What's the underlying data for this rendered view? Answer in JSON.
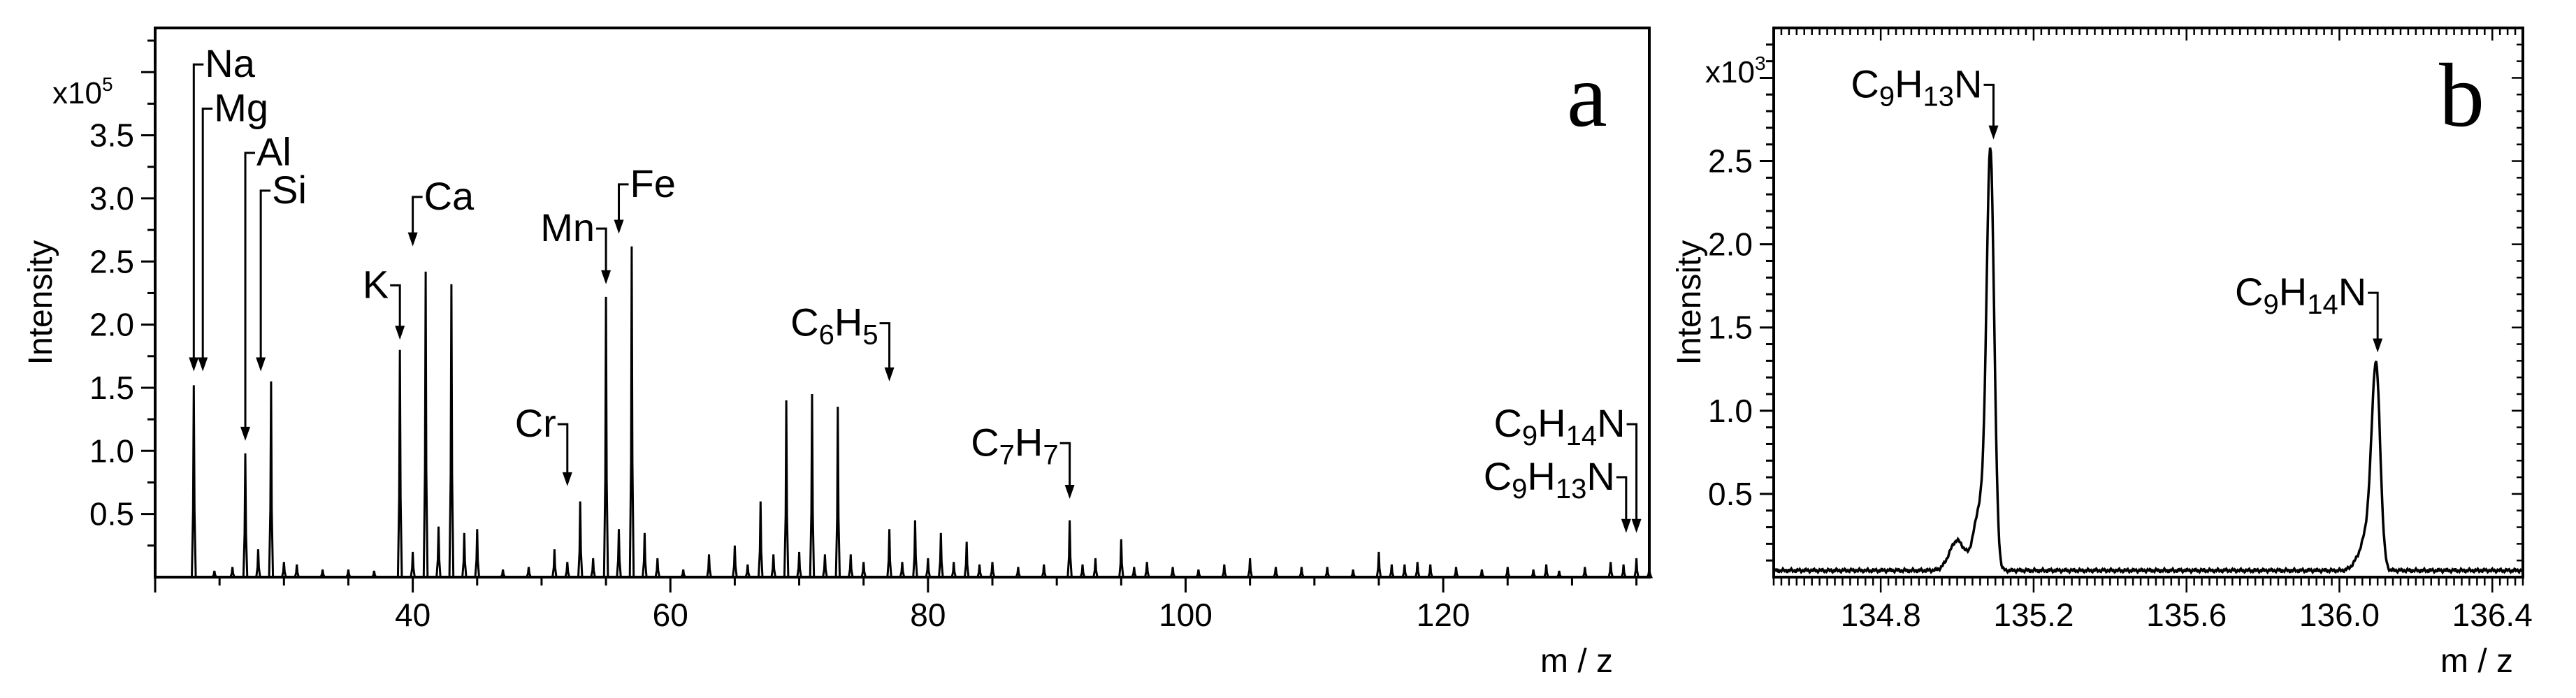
{
  "panels": {
    "a": {
      "letter": "a"
    },
    "b": {
      "letter": "b"
    }
  },
  "chart_data": [
    {
      "panel": "a",
      "type": "line",
      "title": "",
      "xlabel": "m / z",
      "ylabel": "Intensity",
      "y_multiplier": "x10",
      "y_exponent": "5",
      "xlim": [
        20,
        136
      ],
      "ylim": [
        0,
        4.35
      ],
      "x_ticks": [
        40,
        60,
        80,
        100,
        120
      ],
      "y_ticks": [
        0.5,
        1.0,
        1.5,
        2.0,
        2.5,
        3.0,
        3.5
      ],
      "x_tick_labels": [
        "40",
        "60",
        "80",
        "100",
        "120"
      ],
      "y_tick_labels": [
        "0.5",
        "1.0",
        "1.5",
        "2.0",
        "2.5",
        "3.0",
        "3.5"
      ],
      "grid": false,
      "legend": "none",
      "peaks": [
        [
          23.0,
          1.52
        ],
        [
          24.6,
          0.05
        ],
        [
          26.0,
          0.08
        ],
        [
          27.0,
          0.98
        ],
        [
          28.0,
          0.22
        ],
        [
          29.0,
          1.55
        ],
        [
          30.0,
          0.12
        ],
        [
          31.0,
          0.1
        ],
        [
          33.0,
          0.06
        ],
        [
          35.0,
          0.06
        ],
        [
          37.0,
          0.05
        ],
        [
          39.0,
          1.8
        ],
        [
          40.0,
          0.2
        ],
        [
          41.0,
          2.42
        ],
        [
          42.0,
          0.4
        ],
        [
          43.0,
          2.32
        ],
        [
          44.0,
          0.35
        ],
        [
          45.0,
          0.38
        ],
        [
          47.0,
          0.06
        ],
        [
          49.0,
          0.08
        ],
        [
          51.0,
          0.22
        ],
        [
          52.0,
          0.12
        ],
        [
          53.0,
          0.6
        ],
        [
          54.0,
          0.15
        ],
        [
          55.0,
          2.22
        ],
        [
          56.0,
          0.38
        ],
        [
          57.0,
          2.62
        ],
        [
          58.0,
          0.35
        ],
        [
          59.0,
          0.15
        ],
        [
          61.0,
          0.06
        ],
        [
          63.0,
          0.18
        ],
        [
          65.0,
          0.25
        ],
        [
          66.0,
          0.1
        ],
        [
          67.0,
          0.6
        ],
        [
          68.0,
          0.18
        ],
        [
          69.0,
          1.4
        ],
        [
          70.0,
          0.2
        ],
        [
          71.0,
          1.45
        ],
        [
          72.0,
          0.18
        ],
        [
          73.0,
          1.35
        ],
        [
          74.0,
          0.18
        ],
        [
          75.0,
          0.12
        ],
        [
          77.0,
          0.38
        ],
        [
          78.0,
          0.12
        ],
        [
          79.0,
          0.45
        ],
        [
          80.0,
          0.15
        ],
        [
          81.0,
          0.35
        ],
        [
          82.0,
          0.12
        ],
        [
          83.0,
          0.28
        ],
        [
          84.0,
          0.1
        ],
        [
          85.0,
          0.12
        ],
        [
          87.0,
          0.08
        ],
        [
          89.0,
          0.1
        ],
        [
          91.0,
          0.45
        ],
        [
          92.0,
          0.1
        ],
        [
          93.0,
          0.15
        ],
        [
          95.0,
          0.3
        ],
        [
          96.0,
          0.08
        ],
        [
          97.0,
          0.12
        ],
        [
          99.0,
          0.08
        ],
        [
          101.0,
          0.06
        ],
        [
          103.0,
          0.1
        ],
        [
          105.0,
          0.15
        ],
        [
          107.0,
          0.08
        ],
        [
          109.0,
          0.08
        ],
        [
          111.0,
          0.08
        ],
        [
          113.0,
          0.06
        ],
        [
          115.0,
          0.2
        ],
        [
          116.0,
          0.1
        ],
        [
          117.0,
          0.1
        ],
        [
          118.0,
          0.12
        ],
        [
          119.0,
          0.1
        ],
        [
          121.0,
          0.08
        ],
        [
          123.0,
          0.06
        ],
        [
          125.0,
          0.08
        ],
        [
          127.0,
          0.06
        ],
        [
          128.0,
          0.1
        ],
        [
          129.0,
          0.05
        ],
        [
          131.0,
          0.08
        ],
        [
          133.0,
          0.12
        ],
        [
          134.0,
          0.1
        ],
        [
          135.0,
          0.15
        ],
        [
          136.0,
          0.07
        ]
      ],
      "peak_width": 0.15,
      "annotations": [
        {
          "label": [
            "Na"
          ],
          "tip_x": 23.0,
          "tip_y": 1.63,
          "label_y": 4.05,
          "hook": "left"
        },
        {
          "label": [
            "Mg"
          ],
          "tip_x": 23.7,
          "tip_y": 1.63,
          "label_y": 3.7,
          "hook": "left"
        },
        {
          "label": [
            "Al"
          ],
          "tip_x": 27.0,
          "tip_y": 1.08,
          "label_y": 3.35,
          "hook": "left"
        },
        {
          "label": [
            "Si"
          ],
          "tip_x": 28.2,
          "tip_y": 1.63,
          "label_y": 3.05,
          "hook": "left"
        },
        {
          "label": [
            "Ca"
          ],
          "tip_x": 40.0,
          "tip_y": 2.62,
          "label_y": 3.0,
          "hook": "left"
        },
        {
          "label": [
            "K"
          ],
          "tip_x": 39.0,
          "tip_y": 1.88,
          "label_y": 2.3,
          "hook": "right"
        },
        {
          "label": [
            "Mn"
          ],
          "tip_x": 55.0,
          "tip_y": 2.32,
          "label_y": 2.75,
          "hook": "right"
        },
        {
          "label": [
            "Fe"
          ],
          "tip_x": 56.0,
          "tip_y": 2.72,
          "label_y": 3.1,
          "hook": "left"
        },
        {
          "label": [
            "Cr"
          ],
          "tip_x": 52.0,
          "tip_y": 0.72,
          "label_y": 1.2,
          "hook": "right"
        },
        {
          "label": [
            "C",
            "6",
            "H",
            "5"
          ],
          "tip_x": 77.0,
          "tip_y": 1.55,
          "label_y": 2.0,
          "hook": "right"
        },
        {
          "label": [
            "C",
            "7",
            "H",
            "7"
          ],
          "tip_x": 91.0,
          "tip_y": 0.62,
          "label_y": 1.05,
          "hook": "right"
        },
        {
          "label": [
            "C",
            "9",
            "H",
            "14",
            "N"
          ],
          "tip_x": 135.0,
          "tip_y": 0.35,
          "label_y": 1.2,
          "hook": "right"
        },
        {
          "label": [
            "C",
            "9",
            "H",
            "13",
            "N"
          ],
          "tip_x": 134.2,
          "tip_y": 0.35,
          "label_y": 0.78,
          "hook": "right"
        }
      ]
    },
    {
      "panel": "b",
      "type": "line",
      "title": "",
      "xlabel": "m / z",
      "ylabel": "Intensity",
      "y_multiplier": "x10",
      "y_exponent": "3",
      "xlim": [
        134.52,
        136.48
      ],
      "ylim": [
        0,
        3.3
      ],
      "x_ticks": [
        134.8,
        135.2,
        135.6,
        136.0,
        136.4
      ],
      "y_ticks": [
        0.5,
        1.0,
        1.5,
        2.0,
        2.5
      ],
      "x_tick_labels": [
        "134.8",
        "135.2",
        "135.6",
        "136.0",
        "136.4"
      ],
      "y_tick_labels": [
        "0.5",
        "1.0",
        "1.5",
        "2.0",
        "2.5"
      ],
      "grid": false,
      "legend": "none",
      "baseline": 0.04,
      "peaks": [
        {
          "center": 135.087,
          "height": 2.45,
          "width": 0.01
        },
        {
          "center": 135.06,
          "height": 0.38,
          "width": 0.016
        },
        {
          "center": 135.0,
          "height": 0.18,
          "width": 0.02
        },
        {
          "center": 136.096,
          "height": 1.18,
          "width": 0.011
        },
        {
          "center": 136.075,
          "height": 0.22,
          "width": 0.014
        },
        {
          "center": 136.05,
          "height": 0.06,
          "width": 0.015
        }
      ],
      "annotations": [
        {
          "label": [
            "C",
            "9",
            "H",
            "13",
            "N"
          ],
          "tip_x": 135.095,
          "tip_y": 2.63,
          "label_y": 2.95,
          "hook": "right"
        },
        {
          "label": [
            "C",
            "9",
            "H",
            "14",
            "N"
          ],
          "tip_x": 136.1,
          "tip_y": 1.35,
          "label_y": 1.7,
          "hook": "right"
        }
      ]
    }
  ]
}
